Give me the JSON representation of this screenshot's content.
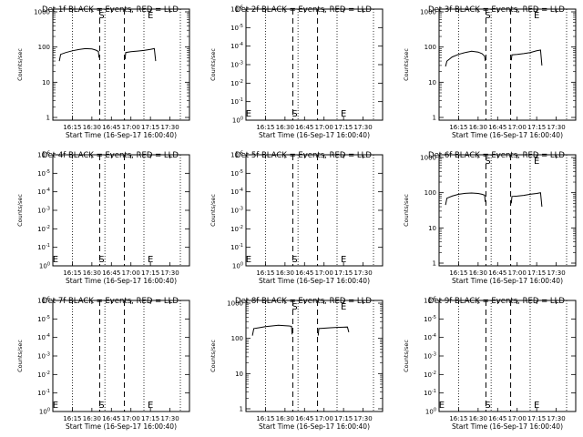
{
  "chart_data": [
    {
      "type": "line",
      "title": "Det 1f BLACK = Events, RED = LLD",
      "xlabel": "Start Time (16-Sep-17 16:00:40)",
      "ylabel": "Counts/sec",
      "x_ticks": [
        "16:15",
        "16:30",
        "16:45",
        "17:00",
        "17:15",
        "17:30"
      ],
      "y_ticks": [
        "1",
        "10",
        "100",
        "1000"
      ],
      "yscale": "log",
      "ylim": [
        1,
        1000
      ],
      "xlim_min": [
        0,
        105
      ],
      "vlines_dotted_min": [
        15,
        40,
        70,
        98
      ],
      "vlines_dashed_min": [
        36,
        55
      ],
      "markers": [
        {
          "label": "S",
          "x_min": 37.5
        },
        {
          "label": "E",
          "x_min": 75
        }
      ],
      "series": [
        {
          "color": "#000000",
          "segments": [
            {
              "x": [
                5,
                6,
                10,
                15,
                20,
                25,
                30,
                33,
                35,
                35.5
              ],
              "y": [
                40,
                62,
                70,
                78,
                85,
                90,
                88,
                82,
                75,
                50
              ]
            },
            {
              "x": [
                55.5,
                56,
                60,
                65,
                70,
                75,
                78,
                79
              ],
              "y": [
                45,
                70,
                74,
                77,
                80,
                86,
                90,
                40
              ]
            }
          ]
        }
      ]
    },
    {
      "type": "line",
      "title": "Det 2f BLACK = Events, RED = LLD",
      "xlabel": "Start Time (16-Sep-17 16:00:40)",
      "ylabel": "Counts/sec",
      "x_ticks": [
        "16:15",
        "16:30",
        "16:45",
        "17:00",
        "17:15",
        "17:30"
      ],
      "y_ticks": [
        "10^0",
        "10^-1",
        "10^-2",
        "10^-3",
        "10^-4",
        "10^-5",
        "10^-6"
      ],
      "yscale": "log",
      "vlines_dotted_min": [
        15,
        40,
        70,
        98
      ],
      "vlines_dashed_min": [
        36,
        55
      ],
      "markers": [
        {
          "label": "E",
          "x_min": 2
        },
        {
          "label": "S",
          "x_min": 37.5
        },
        {
          "label": "E",
          "x_min": 75
        }
      ],
      "series": []
    },
    {
      "type": "line",
      "title": "Det 3f BLACK = Events, RED = LLD",
      "xlabel": "Start Time (16-Sep-17 16:00:40)",
      "ylabel": "Counts/sec",
      "x_ticks": [
        "16:15",
        "16:30",
        "16:45",
        "17:00",
        "17:15",
        "17:30"
      ],
      "y_ticks": [
        "1",
        "10",
        "100",
        "1000"
      ],
      "yscale": "log",
      "ylim": [
        1,
        1000
      ],
      "vlines_dotted_min": [
        15,
        40,
        70,
        98
      ],
      "vlines_dashed_min": [
        36,
        55
      ],
      "markers": [
        {
          "label": "S",
          "x_min": 37.5
        },
        {
          "label": "E",
          "x_min": 75
        }
      ],
      "series": [
        {
          "color": "#000000",
          "segments": [
            {
              "x": [
                5,
                6,
                10,
                15,
                20,
                25,
                30,
                33,
                35,
                35.5
              ],
              "y": [
                28,
                40,
                52,
                62,
                70,
                76,
                72,
                65,
                55,
                40
              ]
            },
            {
              "x": [
                55.5,
                56,
                60,
                65,
                70,
                75,
                78,
                79
              ],
              "y": [
                42,
                60,
                62,
                65,
                70,
                78,
                82,
                30
              ]
            }
          ]
        }
      ]
    },
    {
      "type": "line",
      "title": "Det 4f BLACK = Events, RED = LLD",
      "xlabel": "Start Time (16-Sep-17 16:00:40)",
      "ylabel": "Counts/sec",
      "x_ticks": [
        "16:15",
        "16:30",
        "16:45",
        "17:00",
        "17:15",
        "17:30"
      ],
      "y_ticks": [
        "10^0",
        "10^-1",
        "10^-2",
        "10^-3",
        "10^-4",
        "10^-5",
        "10^-6"
      ],
      "yscale": "log",
      "vlines_dotted_min": [
        15,
        40,
        70,
        98
      ],
      "vlines_dashed_min": [
        36,
        55
      ],
      "markers": [
        {
          "label": "E",
          "x_min": 2
        },
        {
          "label": "S",
          "x_min": 37.5
        },
        {
          "label": "E",
          "x_min": 75
        }
      ],
      "series": []
    },
    {
      "type": "line",
      "title": "Det 5f BLACK = Events, RED = LLD",
      "xlabel": "Start Time (16-Sep-17 16:00:40)",
      "ylabel": "Counts/sec",
      "x_ticks": [
        "16:15",
        "16:30",
        "16:45",
        "17:00",
        "17:15",
        "17:30"
      ],
      "y_ticks": [
        "10^0",
        "10^-1",
        "10^-2",
        "10^-3",
        "10^-4",
        "10^-5",
        "10^-6"
      ],
      "yscale": "log",
      "vlines_dotted_min": [
        15,
        40,
        70,
        98
      ],
      "vlines_dashed_min": [
        36,
        55
      ],
      "markers": [
        {
          "label": "E",
          "x_min": 2
        },
        {
          "label": "S",
          "x_min": 37.5
        },
        {
          "label": "E",
          "x_min": 75
        }
      ],
      "series": []
    },
    {
      "type": "line",
      "title": "Det 6f BLACK = Events, RED = LLD",
      "xlabel": "Start Time (16-Sep-17 16:00:40)",
      "ylabel": "Counts/sec",
      "x_ticks": [
        "16:15",
        "16:30",
        "16:45",
        "17:00",
        "17:15",
        "17:30"
      ],
      "y_ticks": [
        "1",
        "10",
        "100",
        "1000"
      ],
      "yscale": "log",
      "ylim": [
        1,
        1000
      ],
      "vlines_dotted_min": [
        15,
        40,
        70,
        98
      ],
      "vlines_dashed_min": [
        36,
        55
      ],
      "markers": [
        {
          "label": "S",
          "x_min": 37.5
        },
        {
          "label": "E",
          "x_min": 75
        }
      ],
      "series": [
        {
          "color": "#000000",
          "segments": [
            {
              "x": [
                5,
                6,
                10,
                15,
                20,
                25,
                30,
                33,
                35,
                35.5
              ],
              "y": [
                45,
                70,
                80,
                90,
                96,
                98,
                95,
                90,
                85,
                55
              ]
            },
            {
              "x": [
                55.5,
                56,
                60,
                65,
                70,
                75,
                78,
                79
              ],
              "y": [
                50,
                78,
                80,
                84,
                90,
                95,
                100,
                40
              ]
            }
          ]
        }
      ]
    },
    {
      "type": "line",
      "title": "Det 7f BLACK = Events, RED = LLD",
      "xlabel": "Start Time (16-Sep-17 16:00:40)",
      "ylabel": "Counts/sec",
      "x_ticks": [
        "16:15",
        "16:30",
        "16:45",
        "17:00",
        "17:15",
        "17:30"
      ],
      "y_ticks": [
        "10^0",
        "10^-1",
        "10^-2",
        "10^-3",
        "10^-4",
        "10^-5",
        "10^-6"
      ],
      "yscale": "log",
      "vlines_dotted_min": [
        15,
        40,
        70,
        98
      ],
      "vlines_dashed_min": [
        36,
        55
      ],
      "markers": [
        {
          "label": "E",
          "x_min": 2
        },
        {
          "label": "S",
          "x_min": 37.5
        },
        {
          "label": "E",
          "x_min": 75
        }
      ],
      "series": []
    },
    {
      "type": "line",
      "title": "Det 8f BLACK = Events, RED = LLD",
      "xlabel": "Start Time (16-Sep-17 16:00:40)",
      "ylabel": "Counts/sec",
      "x_ticks": [
        "16:15",
        "16:30",
        "16:45",
        "17:00",
        "17:15",
        "17:30"
      ],
      "y_ticks": [
        "1",
        "10",
        "100",
        "1000"
      ],
      "yscale": "log",
      "ylim": [
        1,
        1000
      ],
      "vlines_dotted_min": [
        15,
        40,
        70,
        98
      ],
      "vlines_dashed_min": [
        36,
        55
      ],
      "markers": [
        {
          "label": "S",
          "x_min": 37.5
        },
        {
          "label": "E",
          "x_min": 75
        }
      ],
      "series": [
        {
          "color": "#000000",
          "segments": [
            {
              "x": [
                5,
                6,
                10,
                15,
                20,
                25,
                30,
                33,
                35,
                35.5
              ],
              "y": [
                120,
                190,
                200,
                215,
                225,
                235,
                230,
                225,
                220,
                130
              ]
            },
            {
              "x": [
                55.5,
                56,
                60,
                65,
                70,
                75,
                78,
                79
              ],
              "y": [
                120,
                190,
                195,
                200,
                205,
                208,
                210,
                150
              ]
            }
          ]
        }
      ]
    },
    {
      "type": "line",
      "title": "Det 9f BLACK = Events, RED = LLD",
      "xlabel": "Start Time (16-Sep-17 16:00:40)",
      "ylabel": "Counts/sec",
      "x_ticks": [
        "16:15",
        "16:30",
        "16:45",
        "17:00",
        "17:15",
        "17:30"
      ],
      "y_ticks": [
        "10^0",
        "10^-1",
        "10^-2",
        "10^-3",
        "10^-4",
        "10^-5",
        "10^-6"
      ],
      "yscale": "log",
      "vlines_dotted_min": [
        15,
        40,
        70,
        98
      ],
      "vlines_dashed_min": [
        36,
        55
      ],
      "markers": [
        {
          "label": "E",
          "x_min": 2
        },
        {
          "label": "S",
          "x_min": 37.5
        },
        {
          "label": "E",
          "x_min": 75
        }
      ],
      "series": []
    }
  ]
}
